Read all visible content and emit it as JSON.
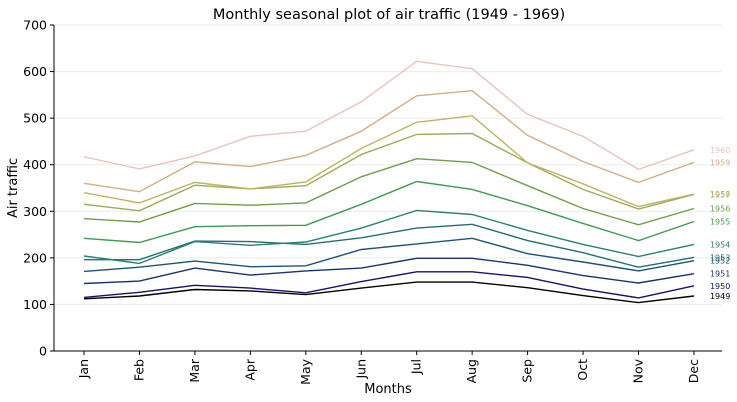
{
  "chart_data": {
    "type": "line",
    "title": "Monthly seasonal plot of air traffic (1949 - 1969)",
    "xlabel": "Months",
    "ylabel": "Air traffic",
    "categories": [
      "Jan",
      "Feb",
      "Mar",
      "Apr",
      "May",
      "Jun",
      "Jul",
      "Aug",
      "Sep",
      "Oct",
      "Nov",
      "Dec"
    ],
    "ylim": [
      0,
      700
    ],
    "yticks": [
      0,
      100,
      200,
      300,
      400,
      500,
      600,
      700
    ],
    "grid": "horizontal",
    "series": [
      {
        "name": "1949",
        "color": "#000000",
        "values": [
          112,
          118,
          132,
          129,
          121,
          135,
          148,
          148,
          136,
          119,
          104,
          118
        ]
      },
      {
        "name": "1950",
        "color": "#14146e",
        "values": [
          115,
          126,
          141,
          135,
          125,
          149,
          170,
          170,
          158,
          133,
          114,
          140
        ]
      },
      {
        "name": "1951",
        "color": "#18336a",
        "values": [
          145,
          150,
          178,
          163,
          172,
          178,
          199,
          199,
          184,
          162,
          146,
          166
        ]
      },
      {
        "name": "1952",
        "color": "#1f5276",
        "values": [
          171,
          180,
          193,
          181,
          183,
          218,
          230,
          242,
          209,
          191,
          172,
          194
        ]
      },
      {
        "name": "1953",
        "color": "#226e73",
        "values": [
          196,
          196,
          236,
          235,
          229,
          243,
          264,
          272,
          237,
          211,
          180,
          201
        ]
      },
      {
        "name": "1954",
        "color": "#2b8270",
        "values": [
          204,
          188,
          235,
          227,
          234,
          264,
          302,
          293,
          259,
          229,
          203,
          229
        ]
      },
      {
        "name": "1955",
        "color": "#3e9a50",
        "values": [
          242,
          233,
          267,
          269,
          270,
          315,
          364,
          347,
          312,
          274,
          237,
          278
        ]
      },
      {
        "name": "1956",
        "color": "#6f9e45",
        "values": [
          284,
          277,
          317,
          313,
          318,
          374,
          413,
          405,
          355,
          306,
          271,
          306
        ]
      },
      {
        "name": "1957",
        "color": "#98ad54",
        "values": [
          315,
          301,
          356,
          348,
          355,
          422,
          465,
          467,
          404,
          347,
          305,
          336
        ]
      },
      {
        "name": "1958",
        "color": "#c0b263",
        "values": [
          340,
          318,
          362,
          348,
          363,
          435,
          491,
          505,
          404,
          359,
          310,
          337
        ]
      },
      {
        "name": "1959",
        "color": "#d1ae86",
        "values": [
          360,
          342,
          406,
          396,
          420,
          472,
          548,
          559,
          463,
          407,
          362,
          405
        ]
      },
      {
        "name": "1960",
        "color": "#e7c4bd",
        "values": [
          417,
          391,
          419,
          461,
          472,
          535,
          622,
          606,
          508,
          461,
          390,
          432
        ]
      }
    ]
  }
}
